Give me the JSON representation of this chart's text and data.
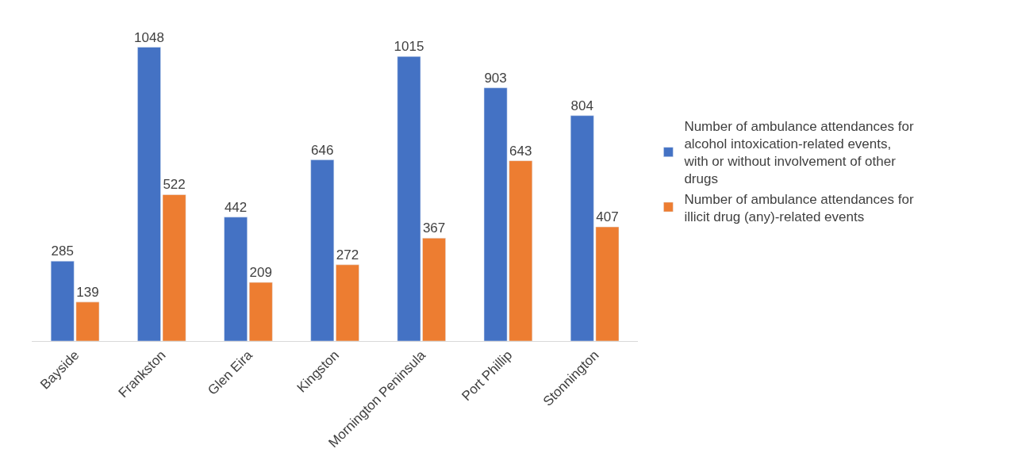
{
  "chart_data": {
    "type": "bar",
    "categories": [
      "Bayside",
      "Frankston",
      "Glen Eira",
      "Kingston",
      "Mornington Peninsula",
      "Port Phillip",
      "Stonnington"
    ],
    "series": [
      {
        "name": "Number of ambulance attendances for alcohol intoxication-related events, with or without involvement of other drugs",
        "color": "#4472c4",
        "values": [
          285,
          1048,
          442,
          646,
          1015,
          903,
          804
        ]
      },
      {
        "name": "Number of ambulance attendances for illicit drug (any)-related events",
        "color": "#ed7d31",
        "values": [
          139,
          522,
          209,
          272,
          367,
          643,
          407
        ]
      }
    ],
    "data_labels": true,
    "legend": "right"
  }
}
